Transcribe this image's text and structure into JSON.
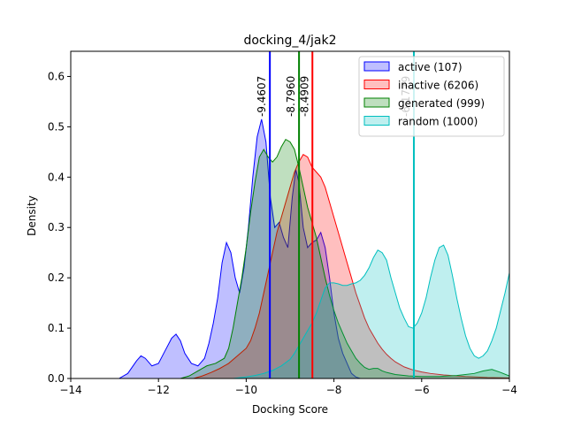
{
  "chart_data": {
    "type": "area",
    "title": "docking_4/jak2",
    "xlabel": "Docking Score",
    "ylabel": "Density",
    "xlim": [
      -14,
      -4
    ],
    "ylim": [
      0,
      0.65
    ],
    "xticks": [
      -14,
      -12,
      -10,
      -8,
      -6,
      -4
    ],
    "xtick_labels": [
      "−14",
      "−12",
      "−10",
      "−8",
      "−6",
      "−4"
    ],
    "yticks": [
      0.0,
      0.1,
      0.2,
      0.3,
      0.4,
      0.5,
      0.6
    ],
    "ytick_labels": [
      "0.0",
      "0.1",
      "0.2",
      "0.3",
      "0.4",
      "0.5",
      "0.6"
    ],
    "grid": false,
    "legend_position": "top-right",
    "series": [
      {
        "name": "active (107)",
        "color": "#0000ff",
        "mean": -9.4607,
        "mean_label": "-9.4607",
        "points": [
          [
            -12.9,
            0
          ],
          [
            -12.7,
            0.01
          ],
          [
            -12.5,
            0.035
          ],
          [
            -12.4,
            0.045
          ],
          [
            -12.3,
            0.04
          ],
          [
            -12.15,
            0.025
          ],
          [
            -12.0,
            0.03
          ],
          [
            -11.85,
            0.055
          ],
          [
            -11.7,
            0.08
          ],
          [
            -11.6,
            0.088
          ],
          [
            -11.5,
            0.075
          ],
          [
            -11.4,
            0.05
          ],
          [
            -11.25,
            0.03
          ],
          [
            -11.1,
            0.025
          ],
          [
            -10.95,
            0.04
          ],
          [
            -10.85,
            0.07
          ],
          [
            -10.75,
            0.11
          ],
          [
            -10.65,
            0.16
          ],
          [
            -10.55,
            0.23
          ],
          [
            -10.45,
            0.27
          ],
          [
            -10.35,
            0.25
          ],
          [
            -10.25,
            0.2
          ],
          [
            -10.15,
            0.17
          ],
          [
            -10.05,
            0.22
          ],
          [
            -9.95,
            0.3
          ],
          [
            -9.85,
            0.4
          ],
          [
            -9.75,
            0.48
          ],
          [
            -9.65,
            0.515
          ],
          [
            -9.55,
            0.47
          ],
          [
            -9.45,
            0.36
          ],
          [
            -9.35,
            0.3
          ],
          [
            -9.25,
            0.31
          ],
          [
            -9.15,
            0.28
          ],
          [
            -9.05,
            0.26
          ],
          [
            -8.95,
            0.36
          ],
          [
            -8.87,
            0.415
          ],
          [
            -8.8,
            0.39
          ],
          [
            -8.7,
            0.3
          ],
          [
            -8.6,
            0.26
          ],
          [
            -8.5,
            0.27
          ],
          [
            -8.4,
            0.275
          ],
          [
            -8.3,
            0.29
          ],
          [
            -8.2,
            0.26
          ],
          [
            -8.1,
            0.2
          ],
          [
            -8.0,
            0.13
          ],
          [
            -7.9,
            0.08
          ],
          [
            -7.8,
            0.05
          ],
          [
            -7.7,
            0.03
          ],
          [
            -7.6,
            0.01
          ],
          [
            -7.5,
            0.003
          ],
          [
            -7.4,
            0
          ]
        ]
      },
      {
        "name": "inactive (6206)",
        "color": "#ff0000",
        "mean": -8.4909,
        "mean_label": "-8.4909",
        "points": [
          [
            -11.2,
            0
          ],
          [
            -11.0,
            0.005
          ],
          [
            -10.8,
            0.012
          ],
          [
            -10.6,
            0.02
          ],
          [
            -10.4,
            0.03
          ],
          [
            -10.2,
            0.045
          ],
          [
            -10.0,
            0.06
          ],
          [
            -9.9,
            0.075
          ],
          [
            -9.8,
            0.1
          ],
          [
            -9.7,
            0.13
          ],
          [
            -9.6,
            0.17
          ],
          [
            -9.5,
            0.21
          ],
          [
            -9.4,
            0.25
          ],
          [
            -9.3,
            0.29
          ],
          [
            -9.2,
            0.32
          ],
          [
            -9.1,
            0.35
          ],
          [
            -9.0,
            0.38
          ],
          [
            -8.9,
            0.41
          ],
          [
            -8.8,
            0.43
          ],
          [
            -8.7,
            0.445
          ],
          [
            -8.6,
            0.44
          ],
          [
            -8.5,
            0.42
          ],
          [
            -8.4,
            0.41
          ],
          [
            -8.3,
            0.4
          ],
          [
            -8.2,
            0.38
          ],
          [
            -8.1,
            0.35
          ],
          [
            -8.0,
            0.32
          ],
          [
            -7.9,
            0.29
          ],
          [
            -7.8,
            0.26
          ],
          [
            -7.7,
            0.23
          ],
          [
            -7.6,
            0.2
          ],
          [
            -7.5,
            0.17
          ],
          [
            -7.4,
            0.145
          ],
          [
            -7.3,
            0.12
          ],
          [
            -7.2,
            0.1
          ],
          [
            -7.1,
            0.085
          ],
          [
            -7.0,
            0.07
          ],
          [
            -6.9,
            0.058
          ],
          [
            -6.8,
            0.048
          ],
          [
            -6.7,
            0.04
          ],
          [
            -6.6,
            0.033
          ],
          [
            -6.5,
            0.028
          ],
          [
            -6.4,
            0.023
          ],
          [
            -6.3,
            0.02
          ],
          [
            -6.2,
            0.017
          ],
          [
            -6.0,
            0.013
          ],
          [
            -5.8,
            0.01
          ],
          [
            -5.5,
            0.007
          ],
          [
            -5.0,
            0.004
          ],
          [
            -4.5,
            0.002
          ],
          [
            -4.0,
            0.001
          ]
        ]
      },
      {
        "name": "generated (999)",
        "color": "#008000",
        "mean": -8.796,
        "mean_label": "-8.7960",
        "points": [
          [
            -11.5,
            0
          ],
          [
            -11.3,
            0.005
          ],
          [
            -11.1,
            0.015
          ],
          [
            -10.9,
            0.025
          ],
          [
            -10.7,
            0.03
          ],
          [
            -10.5,
            0.04
          ],
          [
            -10.4,
            0.06
          ],
          [
            -10.3,
            0.1
          ],
          [
            -10.2,
            0.15
          ],
          [
            -10.1,
            0.2
          ],
          [
            -10.0,
            0.26
          ],
          [
            -9.9,
            0.33
          ],
          [
            -9.8,
            0.39
          ],
          [
            -9.7,
            0.44
          ],
          [
            -9.6,
            0.455
          ],
          [
            -9.5,
            0.44
          ],
          [
            -9.4,
            0.43
          ],
          [
            -9.3,
            0.44
          ],
          [
            -9.2,
            0.46
          ],
          [
            -9.1,
            0.475
          ],
          [
            -9.0,
            0.47
          ],
          [
            -8.9,
            0.455
          ],
          [
            -8.8,
            0.42
          ],
          [
            -8.7,
            0.38
          ],
          [
            -8.6,
            0.34
          ],
          [
            -8.5,
            0.31
          ],
          [
            -8.4,
            0.28
          ],
          [
            -8.3,
            0.24
          ],
          [
            -8.2,
            0.2
          ],
          [
            -8.1,
            0.165
          ],
          [
            -8.0,
            0.135
          ],
          [
            -7.9,
            0.11
          ],
          [
            -7.8,
            0.09
          ],
          [
            -7.7,
            0.07
          ],
          [
            -7.6,
            0.055
          ],
          [
            -7.5,
            0.04
          ],
          [
            -7.4,
            0.03
          ],
          [
            -7.3,
            0.022
          ],
          [
            -7.2,
            0.018
          ],
          [
            -7.1,
            0.02
          ],
          [
            -7.0,
            0.02
          ],
          [
            -6.9,
            0.015
          ],
          [
            -6.8,
            0.012
          ],
          [
            -6.6,
            0.008
          ],
          [
            -6.3,
            0.005
          ],
          [
            -6.0,
            0.004
          ],
          [
            -5.6,
            0.004
          ],
          [
            -5.2,
            0.006
          ],
          [
            -4.8,
            0.01
          ],
          [
            -4.6,
            0.015
          ],
          [
            -4.4,
            0.018
          ],
          [
            -4.2,
            0.012
          ],
          [
            -4.0,
            0.005
          ]
        ]
      },
      {
        "name": "random (1000)",
        "color": "#00bfbf",
        "mean": -6.1779,
        "mean_label": "-6.1779",
        "points": [
          [
            -10.3,
            0
          ],
          [
            -10.0,
            0.003
          ],
          [
            -9.8,
            0.006
          ],
          [
            -9.6,
            0.01
          ],
          [
            -9.4,
            0.016
          ],
          [
            -9.2,
            0.025
          ],
          [
            -9.0,
            0.038
          ],
          [
            -8.9,
            0.05
          ],
          [
            -8.8,
            0.065
          ],
          [
            -8.7,
            0.08
          ],
          [
            -8.6,
            0.095
          ],
          [
            -8.5,
            0.11
          ],
          [
            -8.4,
            0.13
          ],
          [
            -8.3,
            0.155
          ],
          [
            -8.2,
            0.18
          ],
          [
            -8.1,
            0.19
          ],
          [
            -8.0,
            0.19
          ],
          [
            -7.9,
            0.188
          ],
          [
            -7.8,
            0.185
          ],
          [
            -7.7,
            0.185
          ],
          [
            -7.6,
            0.188
          ],
          [
            -7.5,
            0.19
          ],
          [
            -7.4,
            0.195
          ],
          [
            -7.3,
            0.205
          ],
          [
            -7.2,
            0.22
          ],
          [
            -7.1,
            0.24
          ],
          [
            -7.0,
            0.255
          ],
          [
            -6.9,
            0.25
          ],
          [
            -6.8,
            0.235
          ],
          [
            -6.7,
            0.2
          ],
          [
            -6.6,
            0.17
          ],
          [
            -6.5,
            0.14
          ],
          [
            -6.4,
            0.12
          ],
          [
            -6.3,
            0.103
          ],
          [
            -6.2,
            0.1
          ],
          [
            -6.1,
            0.11
          ],
          [
            -6.0,
            0.13
          ],
          [
            -5.9,
            0.16
          ],
          [
            -5.8,
            0.2
          ],
          [
            -5.7,
            0.235
          ],
          [
            -5.6,
            0.26
          ],
          [
            -5.5,
            0.265
          ],
          [
            -5.4,
            0.245
          ],
          [
            -5.3,
            0.205
          ],
          [
            -5.2,
            0.16
          ],
          [
            -5.1,
            0.12
          ],
          [
            -5.0,
            0.085
          ],
          [
            -4.9,
            0.06
          ],
          [
            -4.8,
            0.045
          ],
          [
            -4.7,
            0.04
          ],
          [
            -4.6,
            0.045
          ],
          [
            -4.5,
            0.055
          ],
          [
            -4.4,
            0.075
          ],
          [
            -4.3,
            0.1
          ],
          [
            -4.2,
            0.135
          ],
          [
            -4.1,
            0.17
          ],
          [
            -4.0,
            0.21
          ]
        ]
      }
    ]
  }
}
